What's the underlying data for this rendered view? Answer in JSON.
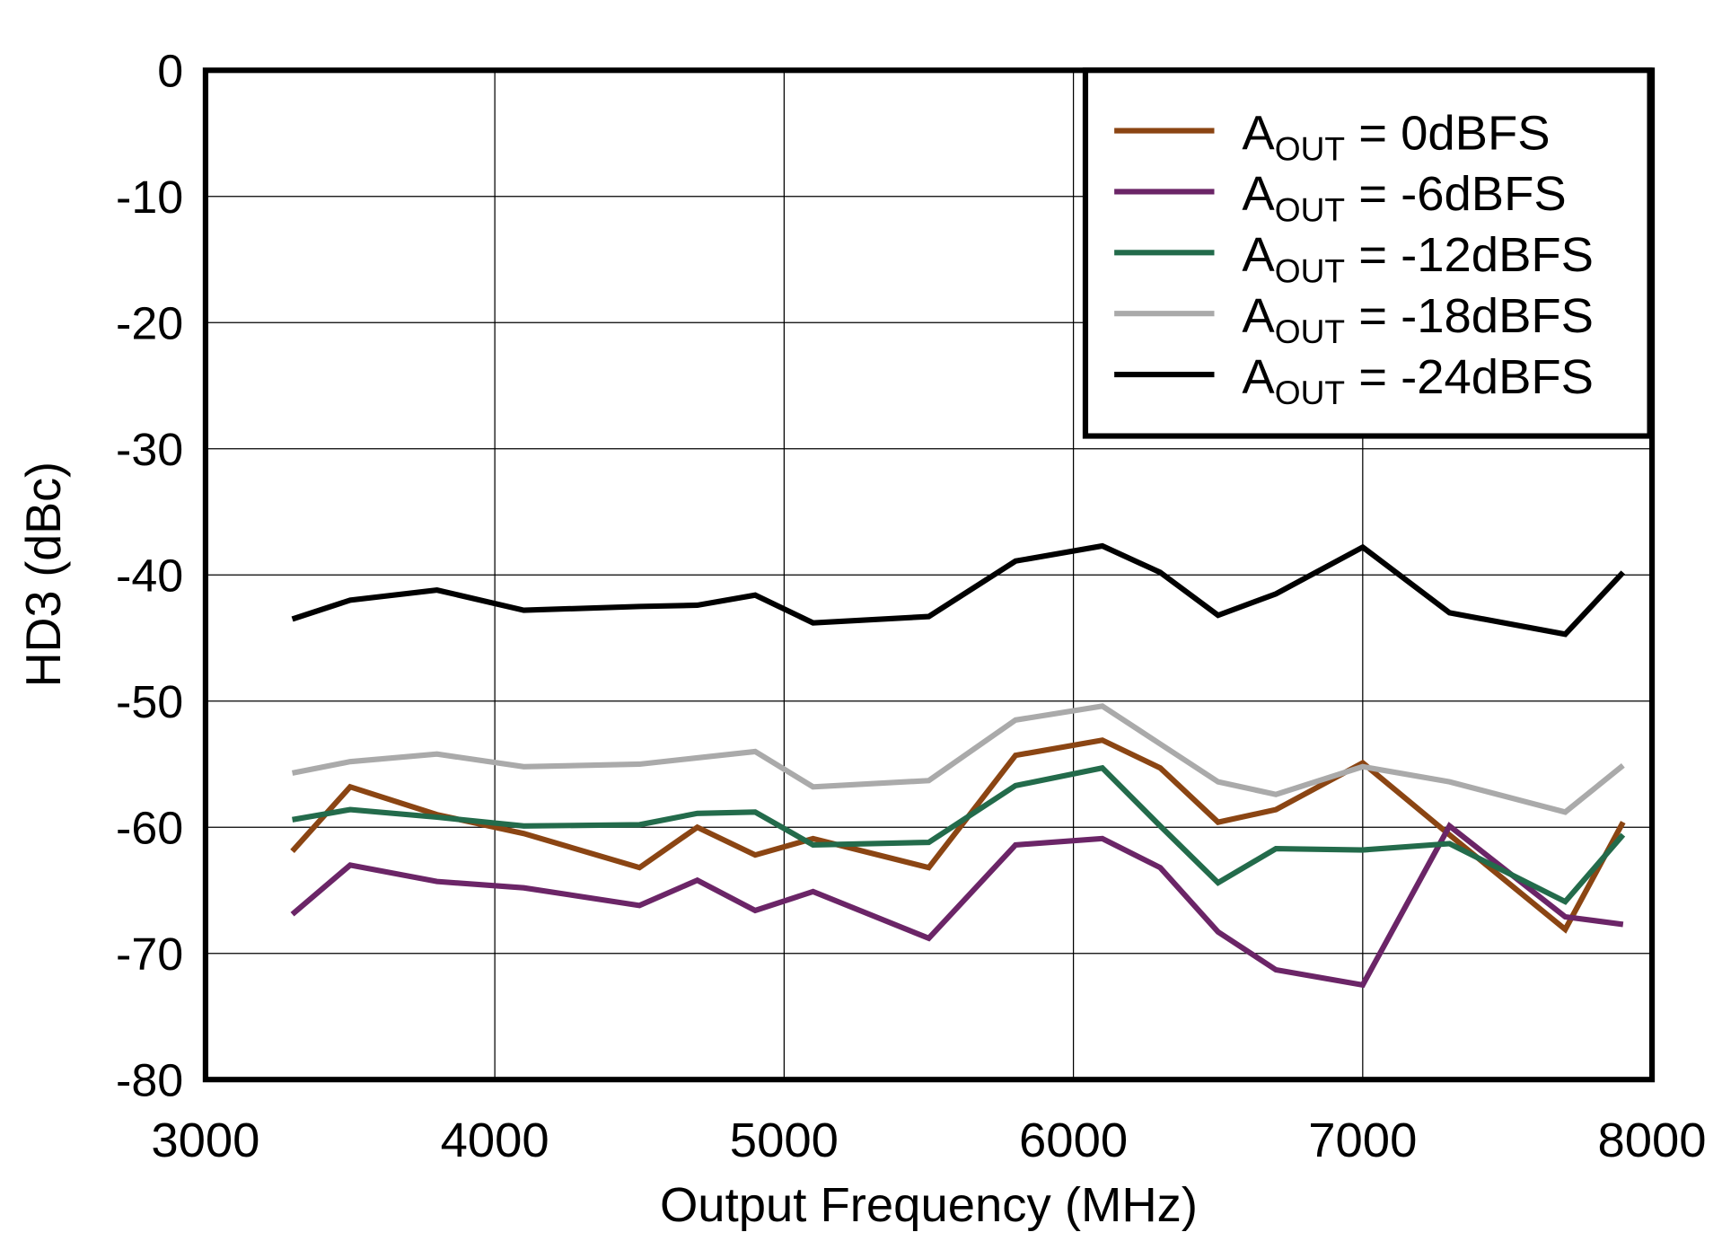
{
  "chart_data": {
    "type": "line",
    "xlabel": "Output Frequency (MHz)",
    "ylabel": "HD3 (dBc)",
    "xlim": [
      3000,
      8000
    ],
    "ylim": [
      -80,
      0
    ],
    "xticks": [
      "3000",
      "4000",
      "5000",
      "6000",
      "7000",
      "8000"
    ],
    "yticks": [
      "0",
      "-10",
      "-20",
      "-30",
      "-40",
      "-50",
      "-60",
      "-70",
      "-80"
    ],
    "grid": true,
    "legend_position": "top-right",
    "x": [
      3300,
      3500,
      3800,
      4100,
      4500,
      4700,
      4900,
      5100,
      5500,
      5800,
      6100,
      6300,
      6500,
      6700,
      7000,
      7300,
      7700,
      7900
    ],
    "series": [
      {
        "name": "A_OUT = 0dBFS",
        "label_main": "A",
        "label_sub": "OUT",
        "label_rest": " = 0dBFS",
        "color": "#8B4513",
        "values": [
          -61.9,
          -56.8,
          -59,
          -60.5,
          -63.2,
          -60,
          -62.2,
          -60.9,
          -63.2,
          -54.3,
          -53.1,
          -55.3,
          -59.6,
          -58.6,
          -54.9,
          -60.6,
          -68.1,
          -59.6
        ]
      },
      {
        "name": "A_OUT = -6dBFS",
        "label_main": "A",
        "label_sub": "OUT",
        "label_rest": " = -6dBFS",
        "color": "#6B2567",
        "values": [
          -66.9,
          -63,
          -64.3,
          -64.8,
          -66.2,
          -64.2,
          -66.6,
          -65.1,
          -68.8,
          -61.4,
          -60.9,
          -63.2,
          -68.3,
          -71.3,
          -72.5,
          -59.9,
          -67.1,
          -67.7
        ]
      },
      {
        "name": "A_OUT = -12dBFS",
        "label_main": "A",
        "label_sub": "OUT",
        "label_rest": " = -12dBFS",
        "color": "#236B4B",
        "values": [
          -59.4,
          -58.6,
          -59.2,
          -59.9,
          -59.8,
          -58.9,
          -58.8,
          -61.4,
          -61.2,
          -56.7,
          -55.3,
          -59.9,
          -64.4,
          -61.7,
          -61.8,
          -61.3,
          -65.9,
          -60.6
        ]
      },
      {
        "name": "A_OUT = -18dBFS",
        "label_main": "A",
        "label_sub": "OUT",
        "label_rest": " = -18dBFS",
        "color": "#AAAAAA",
        "values": [
          -55.7,
          -54.8,
          -54.2,
          -55.2,
          -55,
          -54.5,
          -54,
          -56.8,
          -56.3,
          -51.5,
          -50.4,
          -53.4,
          -56.4,
          -57.4,
          -55.2,
          -56.4,
          -58.8,
          -55.1
        ]
      },
      {
        "name": "A_OUT = -24dBFS",
        "label_main": "A",
        "label_sub": "OUT",
        "label_rest": " = -24dBFS",
        "color": "#000000",
        "values": [
          -43.5,
          -42,
          -41.2,
          -42.8,
          -42.5,
          -42.4,
          -41.6,
          -43.8,
          -43.3,
          -38.9,
          -37.7,
          -39.8,
          -43.2,
          -41.5,
          -37.8,
          -43,
          -44.7,
          -39.8
        ]
      }
    ]
  }
}
